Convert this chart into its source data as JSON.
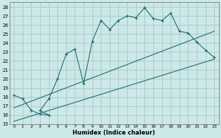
{
  "xlabel": "Humidex (Indice chaleur)",
  "bg_color": "#cce8e8",
  "grid_color": "#aacccc",
  "line_color": "#1a6b6b",
  "xlim": [
    -0.5,
    23.5
  ],
  "ylim": [
    15,
    28.5
  ],
  "xticks": [
    0,
    1,
    2,
    3,
    4,
    5,
    6,
    7,
    8,
    9,
    10,
    11,
    12,
    13,
    14,
    15,
    16,
    17,
    18,
    19,
    20,
    21,
    22,
    23
  ],
  "yticks": [
    15,
    16,
    17,
    18,
    19,
    20,
    21,
    22,
    23,
    24,
    25,
    26,
    27,
    28
  ],
  "main_x": [
    0,
    1,
    2,
    3,
    4,
    3,
    4,
    5,
    6,
    7,
    8,
    9,
    10,
    11,
    12,
    13,
    14,
    15,
    16,
    17,
    18,
    19,
    20,
    21,
    22,
    23
  ],
  "main_y": [
    18.2,
    17.8,
    16.5,
    16.1,
    16.0,
    16.5,
    17.8,
    20.0,
    22.8,
    23.3,
    19.5,
    24.2,
    26.5,
    25.5,
    26.5,
    27.0,
    26.8,
    27.9,
    26.7,
    26.5,
    27.3,
    25.3,
    25.1,
    24.1,
    23.2,
    22.4
  ],
  "line1_x": [
    0,
    23
  ],
  "line1_y": [
    16.8,
    25.3
  ],
  "line2_x": [
    0,
    23
  ],
  "line2_y": [
    15.3,
    22.2
  ]
}
